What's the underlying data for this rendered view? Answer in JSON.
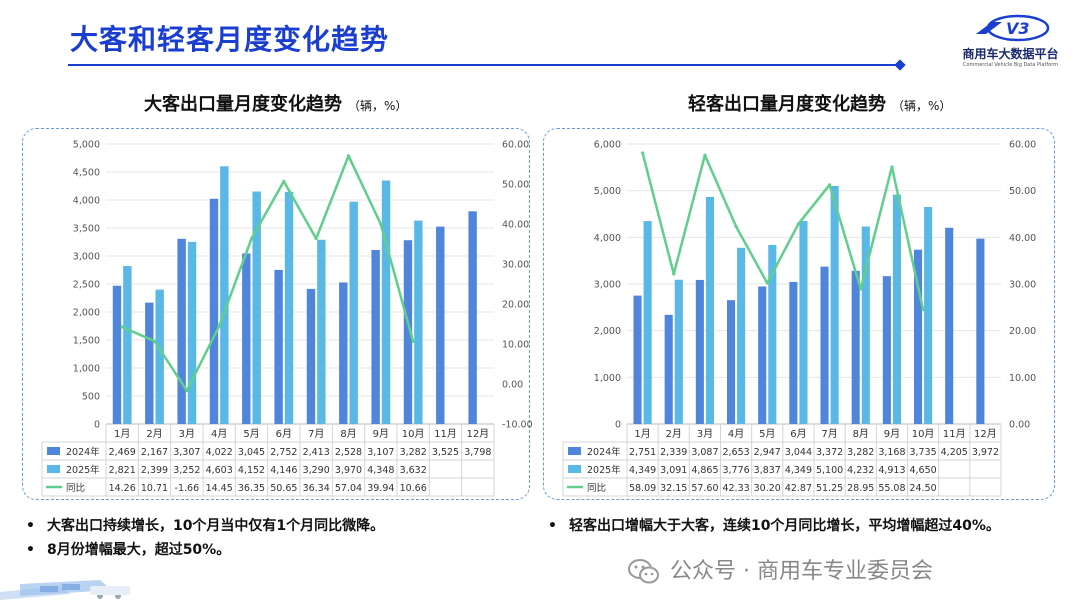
{
  "page": {
    "title": "大客和轻客月度变化趋势",
    "logo_text": "商用车大数据平台",
    "logo_sub": "Commercial Vehicle Big Data Platform",
    "footer": "公众号 · 商用车专业委员会"
  },
  "colors": {
    "title": "#1a3fd0",
    "series_2024": "#4f86dc",
    "series_2025": "#5ab8e6",
    "yoy_line": "#5fcf8b",
    "panel_border": "#6a9ad6"
  },
  "left_panel": {
    "heading": "大客出口量月度变化趋势",
    "unit": "（辆，%）",
    "bullets": [
      "大客出口持续增长，10个月当中仅有1个月同比微降。",
      "8月份增幅最大，超过50%。"
    ]
  },
  "right_panel": {
    "heading": "轻客出口量月度变化趋势",
    "unit": "（辆，%）",
    "bullets": [
      "轻客出口增幅大于大客，连续10个月同比增长，平均增幅超过40%。"
    ]
  },
  "chart_data": [
    {
      "type": "bar",
      "categories": [
        "1月",
        "2月",
        "3月",
        "4月",
        "5月",
        "6月",
        "7月",
        "8月",
        "9月",
        "10月",
        "11月",
        "12月"
      ],
      "series": [
        {
          "name": "2024年",
          "type": "bar",
          "axis": "left",
          "color": "#4f86dc",
          "values": [
            2469,
            2167,
            3307,
            4022,
            3045,
            2752,
            2413,
            2528,
            3107,
            3282,
            3525,
            3798
          ],
          "labels": [
            "2,469",
            "2,167",
            "3,307",
            "4,022",
            "3,045",
            "2,752",
            "2,413",
            "2,528",
            "3,107",
            "3,282",
            "3,525",
            "3,798"
          ]
        },
        {
          "name": "2025年",
          "type": "bar",
          "axis": "left",
          "color": "#5ab8e6",
          "values": [
            2821,
            2399,
            3252,
            4603,
            4152,
            4146,
            3290,
            3970,
            4348,
            3632,
            null,
            null
          ],
          "labels": [
            "2,821",
            "2,399",
            "3,252",
            "4,603",
            "4,152",
            "4,146",
            "3,290",
            "3,970",
            "4,348",
            "3,632",
            "",
            ""
          ]
        },
        {
          "name": "同比",
          "type": "line",
          "axis": "right",
          "color": "#5fcf8b",
          "values": [
            14.26,
            10.71,
            -1.66,
            14.45,
            36.35,
            50.65,
            36.34,
            57.04,
            39.94,
            10.66,
            null,
            null
          ],
          "labels": [
            "14.26",
            "10.71",
            "-1.66",
            "14.45",
            "36.35",
            "50.65",
            "36.34",
            "57.04",
            "39.94",
            "10.66",
            "",
            ""
          ]
        }
      ],
      "y_left": {
        "min": 0,
        "max": 5000,
        "ticks": [
          "0",
          "500",
          "1,000",
          "1,500",
          "2,000",
          "2,500",
          "3,000",
          "3,500",
          "4,000",
          "4,500",
          "5,000"
        ]
      },
      "y_right": {
        "min": -10,
        "max": 60,
        "ticks": [
          "-10.00",
          "0.00",
          "10.00",
          "20.00",
          "30.00",
          "40.00",
          "50.00",
          "60.00"
        ]
      },
      "grid": true,
      "legend": "data-table"
    },
    {
      "type": "bar",
      "categories": [
        "1月",
        "2月",
        "3月",
        "4月",
        "5月",
        "6月",
        "7月",
        "8月",
        "9月",
        "10月",
        "11月",
        "12月"
      ],
      "series": [
        {
          "name": "2024年",
          "type": "bar",
          "axis": "left",
          "color": "#4f86dc",
          "values": [
            2751,
            2339,
            3087,
            2653,
            2947,
            3044,
            3372,
            3282,
            3168,
            3735,
            4205,
            3972
          ],
          "labels": [
            "2,751",
            "2,339",
            "3,087",
            "2,653",
            "2,947",
            "3,044",
            "3,372",
            "3,282",
            "3,168",
            "3,735",
            "4,205",
            "3,972"
          ]
        },
        {
          "name": "2025年",
          "type": "bar",
          "axis": "left",
          "color": "#5ab8e6",
          "values": [
            4349,
            3091,
            4865,
            3776,
            3837,
            4349,
            5100,
            4232,
            4913,
            4650,
            null,
            null
          ],
          "labels": [
            "4,349",
            "3,091",
            "4,865",
            "3,776",
            "3,837",
            "4,349",
            "5,100",
            "4,232",
            "4,913",
            "4,650",
            "",
            ""
          ]
        },
        {
          "name": "同比",
          "type": "line",
          "axis": "right",
          "color": "#5fcf8b",
          "values": [
            58.09,
            32.15,
            57.6,
            42.33,
            30.2,
            42.87,
            51.25,
            28.95,
            55.08,
            24.5,
            null,
            null
          ],
          "labels": [
            "58.09",
            "32.15",
            "57.60",
            "42.33",
            "30.20",
            "42.87",
            "51.25",
            "28.95",
            "55.08",
            "24.50",
            "",
            ""
          ]
        }
      ],
      "y_left": {
        "min": 0,
        "max": 6000,
        "ticks": [
          "0",
          "1,000",
          "2,000",
          "3,000",
          "4,000",
          "5,000",
          "6,000"
        ]
      },
      "y_right": {
        "min": 0,
        "max": 60,
        "ticks": [
          "0.00",
          "10.00",
          "20.00",
          "30.00",
          "40.00",
          "50.00",
          "60.00"
        ]
      },
      "grid": true,
      "legend": "data-table"
    }
  ]
}
